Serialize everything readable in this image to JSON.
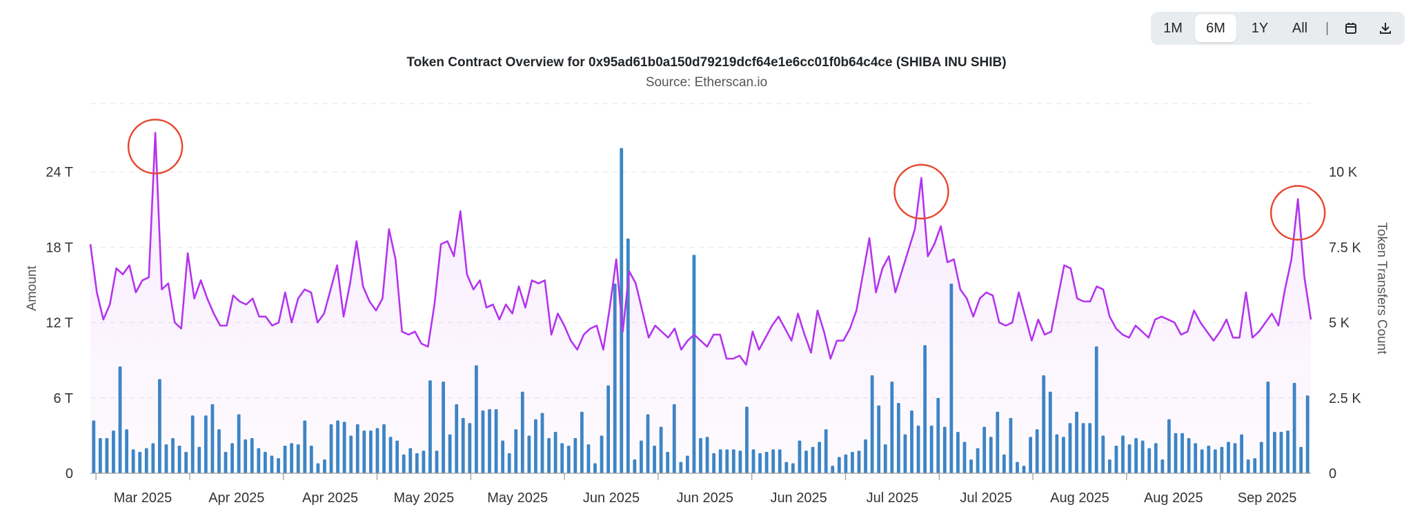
{
  "toolbar": {
    "buttons": [
      "1M",
      "6M",
      "1Y",
      "All"
    ],
    "active": "6M",
    "separator": "|",
    "icons": [
      "calendar-icon",
      "download-icon"
    ]
  },
  "chart_data": {
    "type": "bar+line",
    "title": "Token Contract Overview for 0x95ad61b0a150d79219dcf64e1e6cc01f0b64c4ce (SHIBA INU SHIB)",
    "subtitle": "Source: Etherscan.io",
    "ylabel_left": "Amount",
    "ylabel_right": "Token Transfers Count",
    "left_axis": {
      "ticks": [
        "0",
        "6 T",
        "12 T",
        "18 T",
        "24 T"
      ],
      "tick_values": [
        0,
        6,
        12,
        18,
        24
      ],
      "range": [
        0,
        30
      ],
      "unit": "T"
    },
    "right_axis": {
      "ticks": [
        "0",
        "2.5 K",
        "5 K",
        "7.5 K",
        "10 K"
      ],
      "tick_values": [
        0,
        2.5,
        5,
        7.5,
        10
      ],
      "range": [
        0,
        12.5
      ],
      "unit": "K"
    },
    "x_tick_labels": [
      "Mar 2025",
      "Apr 2025",
      "Apr 2025",
      "May 2025",
      "May 2025",
      "Jun 2025",
      "Jun 2025",
      "Jun 2025",
      "Jul 2025",
      "Jul 2025",
      "Aug 2025",
      "Aug 2025",
      "Sep 2025"
    ],
    "grid": true,
    "series": [
      {
        "name": "Amount",
        "type": "bar",
        "axis": "left",
        "color": "#3a87c4",
        "values": [
          4.2,
          2.8,
          2.8,
          3.4,
          8.5,
          3.5,
          1.9,
          1.7,
          2.0,
          2.4,
          7.5,
          2.3,
          2.8,
          2.2,
          1.7,
          4.6,
          2.1,
          4.6,
          5.5,
          3.5,
          1.7,
          2.4,
          4.7,
          2.7,
          2.8,
          2.0,
          1.7,
          1.4,
          1.2,
          2.2,
          2.4,
          2.3,
          4.2,
          2.2,
          0.8,
          1.1,
          3.9,
          4.2,
          4.1,
          3.0,
          3.9,
          3.4,
          3.4,
          3.6,
          3.9,
          2.9,
          2.6,
          1.5,
          2.0,
          1.6,
          1.8,
          7.4,
          1.8,
          7.3,
          3.1,
          5.5,
          4.4,
          4.0,
          8.6,
          5.0,
          5.1,
          5.1,
          2.6,
          1.6,
          3.5,
          6.5,
          3.0,
          4.3,
          4.8,
          2.8,
          3.3,
          2.4,
          2.2,
          2.8,
          4.9,
          2.3,
          0.8,
          3.0,
          7.0,
          15.1,
          25.9,
          18.7,
          1.1,
          2.6,
          4.7,
          2.2,
          3.7,
          1.7,
          5.5,
          0.9,
          1.4,
          17.4,
          2.8,
          2.9,
          1.6,
          1.9,
          1.9,
          1.9,
          1.8,
          5.3,
          1.9,
          1.6,
          1.7,
          1.9,
          1.9,
          0.9,
          0.8,
          2.6,
          1.8,
          2.1,
          2.5,
          3.5,
          0.6,
          1.3,
          1.5,
          1.7,
          1.8,
          2.7,
          7.8,
          5.4,
          2.3,
          7.3,
          5.6,
          3.1,
          5.0,
          3.8,
          10.2,
          3.8,
          6.0,
          3.7,
          15.1,
          3.3,
          2.5,
          1.1,
          2.0,
          3.7,
          2.9,
          4.9,
          1.5,
          4.4,
          0.9,
          0.6,
          2.9,
          3.5,
          7.8,
          6.5,
          3.1,
          2.9,
          4.0,
          4.9,
          4.0,
          4.0,
          10.1,
          3.0,
          1.1,
          2.2,
          3.0,
          2.3,
          2.8,
          2.6,
          2.0,
          2.4,
          1.1,
          4.3,
          3.2,
          3.2,
          2.8,
          2.4,
          1.9,
          2.2,
          1.9,
          2.1,
          2.5,
          2.4,
          3.1,
          1.1,
          1.2,
          2.5,
          7.3,
          3.3,
          3.3,
          3.4,
          7.2,
          2.1,
          6.2
        ]
      },
      {
        "name": "Token Transfers Count",
        "type": "line",
        "axis": "right",
        "color": "#b334ee",
        "values": [
          7.6,
          6.0,
          5.1,
          5.6,
          6.8,
          6.6,
          6.9,
          6.0,
          6.4,
          6.5,
          11.3,
          6.1,
          6.3,
          5.0,
          4.8,
          7.3,
          5.8,
          6.4,
          5.8,
          5.3,
          4.9,
          4.9,
          5.9,
          5.7,
          5.6,
          5.8,
          5.2,
          5.2,
          4.9,
          5.0,
          6.0,
          5.0,
          5.8,
          6.1,
          6.0,
          5.0,
          5.3,
          6.1,
          6.9,
          5.2,
          6.3,
          7.7,
          6.2,
          5.7,
          5.4,
          5.8,
          8.1,
          7.1,
          4.7,
          4.6,
          4.7,
          4.3,
          4.2,
          5.6,
          7.6,
          7.7,
          7.2,
          8.7,
          6.6,
          6.1,
          6.4,
          5.5,
          5.6,
          5.1,
          5.6,
          5.3,
          6.2,
          5.5,
          6.4,
          6.3,
          6.4,
          4.6,
          5.3,
          4.9,
          4.4,
          4.1,
          4.6,
          4.8,
          4.9,
          4.1,
          5.5,
          7.1,
          4.7,
          6.7,
          6.3,
          5.4,
          4.5,
          4.9,
          4.7,
          4.5,
          4.8,
          4.1,
          4.4,
          4.6,
          4.4,
          4.2,
          4.6,
          4.6,
          3.8,
          3.8,
          3.9,
          3.6,
          4.7,
          4.1,
          4.5,
          4.9,
          5.2,
          4.8,
          4.4,
          5.3,
          4.6,
          4.0,
          5.4,
          4.7,
          3.8,
          4.4,
          4.4,
          4.8,
          5.4,
          6.6,
          7.8,
          6.0,
          6.8,
          7.2,
          6.0,
          6.7,
          7.4,
          8.1,
          9.8,
          7.2,
          7.6,
          8.2,
          7.0,
          7.1,
          6.1,
          5.8,
          5.2,
          5.8,
          6.0,
          5.9,
          5.0,
          4.9,
          5.0,
          6.0,
          5.2,
          4.4,
          5.1,
          4.6,
          4.7,
          5.8,
          6.9,
          6.8,
          5.8,
          5.7,
          5.7,
          6.2,
          6.1,
          5.2,
          4.8,
          4.6,
          4.5,
          4.9,
          4.7,
          4.5,
          5.1,
          5.2,
          5.1,
          5.0,
          4.6,
          4.7,
          5.4,
          5.0,
          4.7,
          4.4,
          4.7,
          5.1,
          4.5,
          4.5,
          6.0,
          4.5,
          4.7,
          5.0,
          5.3,
          4.9,
          6.1,
          7.1,
          9.1,
          6.5,
          5.1
        ]
      }
    ],
    "highlighted_peaks": [
      "Mar 2025 peak",
      "Jul 2025 peak",
      "Sep 2025 peak"
    ]
  }
}
